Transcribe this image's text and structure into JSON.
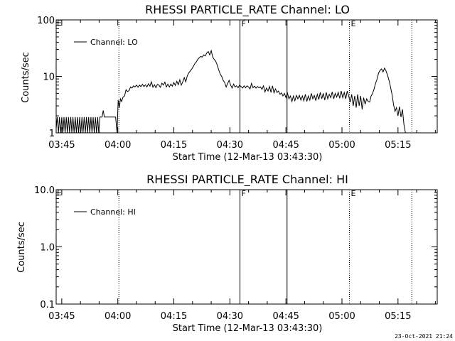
{
  "footer": {
    "timestamp": "23-Oct-2021 21:24"
  },
  "x_axis": {
    "ticks": [
      {
        "t": 0,
        "label": "03:45"
      },
      {
        "t": 15,
        "label": "04:00"
      },
      {
        "t": 30,
        "label": "04:15"
      },
      {
        "t": 45,
        "label": "04:30"
      },
      {
        "t": 60,
        "label": "04:45"
      },
      {
        "t": 75,
        "label": "05:00"
      },
      {
        "t": 90,
        "label": "05:15"
      }
    ],
    "range_minutes_after_0345": [
      -1.5,
      100.5
    ],
    "minor_step_minutes": 5
  },
  "markers": [
    {
      "t": 15.3,
      "style": "dotted",
      "letter": ""
    },
    {
      "t": 47.7,
      "style": "solid",
      "letter": "F"
    },
    {
      "t": 60.3,
      "style": "solid",
      "letter": ""
    },
    {
      "t": 77.0,
      "style": "dotted",
      "letter": "E"
    },
    {
      "t": 93.7,
      "style": "dotted",
      "letter": ""
    }
  ],
  "corner_letter": "E",
  "chart_data": [
    {
      "type": "line",
      "title": "RHESSI PARTICLE_RATE Channel: LO",
      "xlabel": "Start Time (12-Mar-13 03:43:30)",
      "ylabel": "Counts/sec",
      "yscale": "log",
      "ylim": [
        1,
        100
      ],
      "yticks": [
        {
          "v": 1,
          "label": "1"
        },
        {
          "v": 10,
          "label": "10"
        },
        {
          "v": 100,
          "label": "100"
        }
      ],
      "legend": {
        "placement": "top-left",
        "label": "Channel: LO"
      },
      "series": [
        {
          "name": "Channel: LO",
          "points": [
            [
              -1.5,
              1.2
            ],
            [
              -1.2,
              1.9
            ],
            [
              -0.9,
              1.0
            ],
            [
              -0.6,
              1.9
            ],
            [
              -0.3,
              1.0
            ],
            [
              0.0,
              1.9
            ],
            [
              0.3,
              1.0
            ],
            [
              0.6,
              1.9
            ],
            [
              0.9,
              1.0
            ],
            [
              1.2,
              1.9
            ],
            [
              1.5,
              1.0
            ],
            [
              1.8,
              1.9
            ],
            [
              2.1,
              1.0
            ],
            [
              2.4,
              1.9
            ],
            [
              2.7,
              1.0
            ],
            [
              3.0,
              1.9
            ],
            [
              3.3,
              1.0
            ],
            [
              3.6,
              1.9
            ],
            [
              3.9,
              1.0
            ],
            [
              4.2,
              1.9
            ],
            [
              4.5,
              1.0
            ],
            [
              4.8,
              1.9
            ],
            [
              5.1,
              1.0
            ],
            [
              5.4,
              1.9
            ],
            [
              5.7,
              1.0
            ],
            [
              6.0,
              1.9
            ],
            [
              6.3,
              1.0
            ],
            [
              6.6,
              1.9
            ],
            [
              6.9,
              1.0
            ],
            [
              7.2,
              1.9
            ],
            [
              7.5,
              1.0
            ],
            [
              7.8,
              1.9
            ],
            [
              8.1,
              1.0
            ],
            [
              8.4,
              1.9
            ],
            [
              8.7,
              1.0
            ],
            [
              9.0,
              1.9
            ],
            [
              9.3,
              1.0
            ],
            [
              9.6,
              1.9
            ],
            [
              9.9,
              1.0
            ],
            [
              10.2,
              1.9
            ],
            [
              10.5,
              1.9
            ],
            [
              10.8,
              1.9
            ],
            [
              11.1,
              2.5
            ],
            [
              11.4,
              1.9
            ],
            [
              11.7,
              1.9
            ],
            [
              12.0,
              1.9
            ],
            [
              12.3,
              1.9
            ],
            [
              12.6,
              1.9
            ],
            [
              12.9,
              1.9
            ],
            [
              13.2,
              1.9
            ],
            [
              13.5,
              1.9
            ],
            [
              13.8,
              1.9
            ],
            [
              14.1,
              1.9
            ],
            [
              14.4,
              1.9
            ],
            [
              14.8,
              1.0
            ],
            [
              15.1,
              3.8
            ],
            [
              15.4,
              2.8
            ],
            [
              15.7,
              4.0
            ],
            [
              16.0,
              3.6
            ],
            [
              16.4,
              4.3
            ],
            [
              16.8,
              4.5
            ],
            [
              17.2,
              5.8
            ],
            [
              17.6,
              5.4
            ],
            [
              18.0,
              5.6
            ],
            [
              18.4,
              6.5
            ],
            [
              18.8,
              6.2
            ],
            [
              19.2,
              6.8
            ],
            [
              19.6,
              6.5
            ],
            [
              20.0,
              7.0
            ],
            [
              20.4,
              6.4
            ],
            [
              20.8,
              7.0
            ],
            [
              21.2,
              6.6
            ],
            [
              21.6,
              7.2
            ],
            [
              22.0,
              6.6
            ],
            [
              22.4,
              7.1
            ],
            [
              22.8,
              6.5
            ],
            [
              23.2,
              7.4
            ],
            [
              23.6,
              6.7
            ],
            [
              24.0,
              8.0
            ],
            [
              24.4,
              6.4
            ],
            [
              24.8,
              7.1
            ],
            [
              25.2,
              6.3
            ],
            [
              25.6,
              7.2
            ],
            [
              26.0,
              7.0
            ],
            [
              26.4,
              6.4
            ],
            [
              26.8,
              7.6
            ],
            [
              27.2,
              7.0
            ],
            [
              27.6,
              7.9
            ],
            [
              28.0,
              6.5
            ],
            [
              28.4,
              7.3
            ],
            [
              28.8,
              6.5
            ],
            [
              29.2,
              7.3
            ],
            [
              29.6,
              6.7
            ],
            [
              30.0,
              7.8
            ],
            [
              30.4,
              6.9
            ],
            [
              30.8,
              8.2
            ],
            [
              31.2,
              7.1
            ],
            [
              31.6,
              8.7
            ],
            [
              32.0,
              7.0
            ],
            [
              32.4,
              8.0
            ],
            [
              32.8,
              9.5
            ],
            [
              33.2,
              8.0
            ],
            [
              33.6,
              10.2
            ],
            [
              34.0,
              11.5
            ],
            [
              34.4,
              12.5
            ],
            [
              34.8,
              13.5
            ],
            [
              35.2,
              15.0
            ],
            [
              35.6,
              16.8
            ],
            [
              36.0,
              18.0
            ],
            [
              36.4,
              20.0
            ],
            [
              36.8,
              21.5
            ],
            [
              37.2,
              22.5
            ],
            [
              37.6,
              22.0
            ],
            [
              38.0,
              24.0
            ],
            [
              38.4,
              23.0
            ],
            [
              38.8,
              26.0
            ],
            [
              39.2,
              27.5
            ],
            [
              39.6,
              24.0
            ],
            [
              40.0,
              28.5
            ],
            [
              40.4,
              22.0
            ],
            [
              40.8,
              20.0
            ],
            [
              41.2,
              18.5
            ],
            [
              41.6,
              16.0
            ],
            [
              42.0,
              13.0
            ],
            [
              42.4,
              11.0
            ],
            [
              42.8,
              10.0
            ],
            [
              43.2,
              8.5
            ],
            [
              43.6,
              7.8
            ],
            [
              44.0,
              6.5
            ],
            [
              44.4,
              7.5
            ],
            [
              44.8,
              8.5
            ],
            [
              45.2,
              7.0
            ],
            [
              45.6,
              6.2
            ],
            [
              46.0,
              7.3
            ],
            [
              46.4,
              6.5
            ],
            [
              46.8,
              6.8
            ],
            [
              47.2,
              6.3
            ],
            [
              47.6,
              7.0
            ],
            [
              48.0,
              6.6
            ],
            [
              48.4,
              6.2
            ],
            [
              48.8,
              6.8
            ],
            [
              49.2,
              6.3
            ],
            [
              49.6,
              6.8
            ],
            [
              50.0,
              6.5
            ],
            [
              50.4,
              6.0
            ],
            [
              50.8,
              7.5
            ],
            [
              51.2,
              6.3
            ],
            [
              51.6,
              6.7
            ],
            [
              52.0,
              6.2
            ],
            [
              52.4,
              6.6
            ],
            [
              52.8,
              6.3
            ],
            [
              53.2,
              6.5
            ],
            [
              53.6,
              5.9
            ],
            [
              54.0,
              6.8
            ],
            [
              54.4,
              5.3
            ],
            [
              54.8,
              6.2
            ],
            [
              55.2,
              5.5
            ],
            [
              55.6,
              6.6
            ],
            [
              56.0,
              5.2
            ],
            [
              56.4,
              6.8
            ],
            [
              56.8,
              5.1
            ],
            [
              57.2,
              6.0
            ],
            [
              57.6,
              5.2
            ],
            [
              58.0,
              5.5
            ],
            [
              58.4,
              4.8
            ],
            [
              58.8,
              5.1
            ],
            [
              59.2,
              4.5
            ],
            [
              59.6,
              5.0
            ],
            [
              60.0,
              4.2
            ],
            [
              60.4,
              5.1
            ],
            [
              60.8,
              4.0
            ],
            [
              61.2,
              4.5
            ],
            [
              61.6,
              3.6
            ],
            [
              62.0,
              4.5
            ],
            [
              62.4,
              3.7
            ],
            [
              62.8,
              4.6
            ],
            [
              63.2,
              4.0
            ],
            [
              63.6,
              4.6
            ],
            [
              64.0,
              3.8
            ],
            [
              64.4,
              4.5
            ],
            [
              64.8,
              3.7
            ],
            [
              65.2,
              4.8
            ],
            [
              65.6,
              3.6
            ],
            [
              66.0,
              4.5
            ],
            [
              66.4,
              3.8
            ],
            [
              66.8,
              5.0
            ],
            [
              67.2,
              4.0
            ],
            [
              67.6,
              4.6
            ],
            [
              68.0,
              3.7
            ],
            [
              68.4,
              4.8
            ],
            [
              68.8,
              3.9
            ],
            [
              69.2,
              5.2
            ],
            [
              69.6,
              4.0
            ],
            [
              70.0,
              5.0
            ],
            [
              70.4,
              3.8
            ],
            [
              70.8,
              5.2
            ],
            [
              71.2,
              4.0
            ],
            [
              71.6,
              4.8
            ],
            [
              72.0,
              4.2
            ],
            [
              72.4,
              5.3
            ],
            [
              72.8,
              4.0
            ],
            [
              73.2,
              5.0
            ],
            [
              73.6,
              4.3
            ],
            [
              74.0,
              5.2
            ],
            [
              74.4,
              4.1
            ],
            [
              74.8,
              5.5
            ],
            [
              75.2,
              4.2
            ],
            [
              75.6,
              5.2
            ],
            [
              76.0,
              4.0
            ],
            [
              76.4,
              5.5
            ],
            [
              76.8,
              4.5
            ],
            [
              77.2,
              3.5
            ],
            [
              77.6,
              4.8
            ],
            [
              78.0,
              3.0
            ],
            [
              78.4,
              4.5
            ],
            [
              78.8,
              2.8
            ],
            [
              79.2,
              4.8
            ],
            [
              79.6,
              3.0
            ],
            [
              80.0,
              4.5
            ],
            [
              80.4,
              2.6
            ],
            [
              80.8,
              4.2
            ],
            [
              81.2,
              3.2
            ],
            [
              81.6,
              4.0
            ],
            [
              82.0,
              3.6
            ],
            [
              82.4,
              3.5
            ],
            [
              82.8,
              4.5
            ],
            [
              83.2,
              5.0
            ],
            [
              83.6,
              6.0
            ],
            [
              84.0,
              7.5
            ],
            [
              84.4,
              9.0
            ],
            [
              84.8,
              11.5
            ],
            [
              85.2,
              12.8
            ],
            [
              85.6,
              13.5
            ],
            [
              86.0,
              12.0
            ],
            [
              86.4,
              14.0
            ],
            [
              86.8,
              12.5
            ],
            [
              87.2,
              10.5
            ],
            [
              87.6,
              8.5
            ],
            [
              88.0,
              6.5
            ],
            [
              88.4,
              4.8
            ],
            [
              88.8,
              3.2
            ],
            [
              89.2,
              2.4
            ],
            [
              89.6,
              2.8
            ],
            [
              90.0,
              2.0
            ],
            [
              90.4,
              2.9
            ],
            [
              90.8,
              1.9
            ],
            [
              91.2,
              2.6
            ],
            [
              91.6,
              1.4
            ],
            [
              92.0,
              1.0
            ]
          ]
        }
      ]
    },
    {
      "type": "line",
      "title": "RHESSI PARTICLE_RATE Channel: HI",
      "xlabel": "Start Time (12-Mar-13 03:43:30)",
      "ylabel": "Counts/sec",
      "yscale": "log",
      "ylim": [
        0.1,
        10
      ],
      "yticks": [
        {
          "v": 0.1,
          "label": "0.1"
        },
        {
          "v": 1,
          "label": "1.0"
        },
        {
          "v": 10,
          "label": "10.0"
        }
      ],
      "legend": {
        "placement": "top-left",
        "label": "Channel: HI"
      },
      "series": [
        {
          "name": "Channel: HI",
          "points": []
        }
      ]
    }
  ]
}
